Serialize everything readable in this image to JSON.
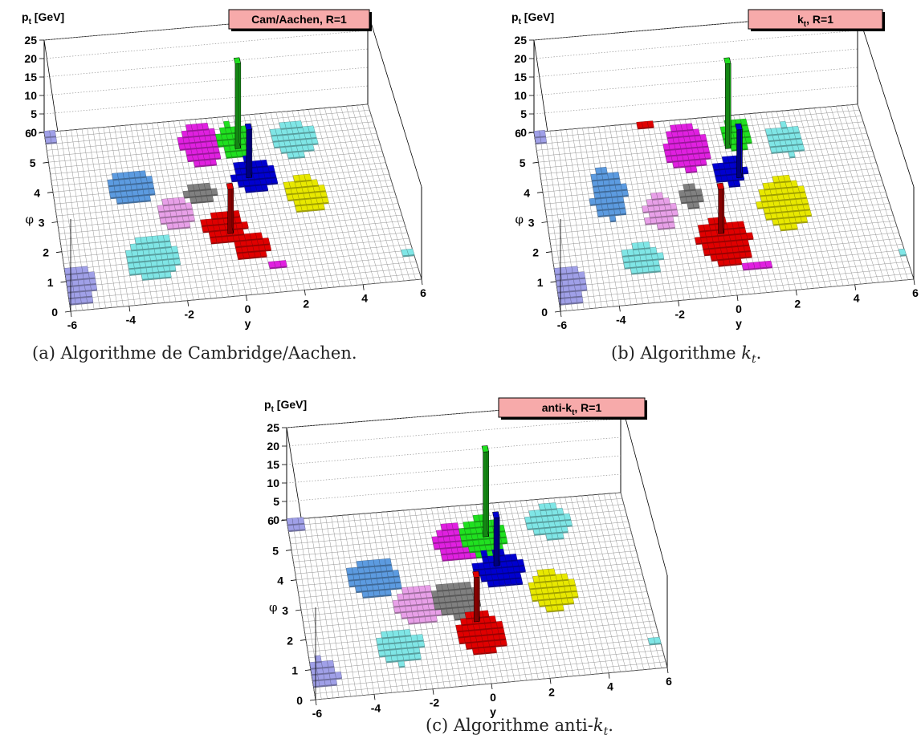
{
  "chart_data": [
    {
      "type": "lego3d",
      "id": "a",
      "title": "Cam/Aachen, R=1",
      "zlabel_main": "p",
      "zlabel_sub": "t",
      "zlabel_unit": " [GeV]",
      "xlabel": "y",
      "ylabel": "φ",
      "xlim": [
        -6,
        6
      ],
      "ylim": [
        0,
        6
      ],
      "zlim": [
        0,
        25
      ],
      "x_ticks": [
        "-6",
        "-4",
        "-2",
        "0",
        "2",
        "4",
        "6"
      ],
      "y_ticks": [
        "0",
        "1",
        "2",
        "3",
        "4",
        "5",
        "6"
      ],
      "z_ticks": [
        "0",
        "5",
        "10",
        "15",
        "20",
        "25"
      ],
      "grid": true,
      "caption_prefix": "(a) Algorithme de Cambridge/Aachen.",
      "caption_math": "",
      "caption_sub": "",
      "caption_suffix": "",
      "jets": [
        {
          "color": "#a0a0e8",
          "blobs": [
            [
              -5.6,
              0.8,
              0.55,
              0.65
            ],
            [
              -6.0,
              5.85,
              0.5,
              0.2
            ]
          ]
        },
        {
          "color": "#7fe6e6",
          "blobs": [
            [
              -2.9,
              1.5,
              0.95,
              0.75
            ],
            [
              3.0,
              5.0,
              0.8,
              0.55
            ],
            [
              5.9,
              0.9,
              0.25,
              0.12
            ]
          ]
        },
        {
          "color": "#5c9be0",
          "blobs": [
            [
              -3.2,
              3.9,
              0.85,
              0.55
            ]
          ]
        },
        {
          "color": "#e8a0e8",
          "blobs": [
            [
              -1.8,
              2.95,
              0.6,
              0.55
            ]
          ]
        },
        {
          "color": "#808080",
          "blobs": [
            [
              -0.8,
              3.5,
              0.55,
              0.35
            ]
          ]
        },
        {
          "color": "#e00000",
          "blobs": [
            [
              -0.2,
              2.3,
              0.8,
              0.55
            ],
            [
              0.6,
              1.6,
              0.6,
              0.5
            ]
          ]
        },
        {
          "color": "#e020e0",
          "blobs": [
            [
              -0.4,
              5.1,
              0.75,
              0.7
            ],
            [
              1.3,
              0.95,
              0.35,
              0.12
            ]
          ]
        },
        {
          "color": "#20e020",
          "blobs": [
            [
              0.8,
              5.15,
              0.6,
              0.55
            ]
          ]
        },
        {
          "color": "#0000d0",
          "blobs": [
            [
              1.25,
              3.95,
              0.8,
              0.55
            ]
          ]
        },
        {
          "color": "#e8e800",
          "blobs": [
            [
              2.9,
              3.15,
              0.7,
              0.6
            ]
          ]
        }
      ],
      "spikes": [
        {
          "x": 0.8,
          "y": 4.9,
          "z": 23,
          "color": "#20e020"
        },
        {
          "x": 0.95,
          "y": 3.9,
          "z": 13,
          "color": "#0000d0"
        },
        {
          "x": -0.15,
          "y": 2.1,
          "z": 12,
          "color": "#e00000"
        }
      ]
    },
    {
      "type": "lego3d",
      "id": "b",
      "title_main": "k",
      "title_sub": "t",
      "title_rest": ", R=1",
      "zlabel_main": "p",
      "zlabel_sub": "t",
      "zlabel_unit": " [GeV]",
      "xlabel": "y",
      "ylabel": "φ",
      "xlim": [
        -6,
        6
      ],
      "ylim": [
        0,
        6
      ],
      "zlim": [
        0,
        25
      ],
      "x_ticks": [
        "-6",
        "-4",
        "-2",
        "0",
        "2",
        "4",
        "6"
      ],
      "y_ticks": [
        "0",
        "1",
        "2",
        "3",
        "4",
        "5",
        "6"
      ],
      "z_ticks": [
        "0",
        "5",
        "10",
        "15",
        "20",
        "25"
      ],
      "grid": true,
      "caption_prefix": "(b) Algorithme ",
      "caption_math": "k",
      "caption_sub": "t",
      "caption_suffix": ".",
      "jets": [
        {
          "color": "#a0a0e8",
          "blobs": [
            [
              -5.6,
              0.8,
              0.55,
              0.6
            ],
            [
              -6.0,
              5.85,
              0.5,
              0.2
            ]
          ]
        },
        {
          "color": "#7fe6e6",
          "blobs": [
            [
              -2.9,
              1.45,
              0.65,
              0.5
            ],
            [
              3.0,
              5.0,
              0.7,
              0.5
            ],
            [
              5.9,
              0.85,
              0.2,
              0.1
            ]
          ]
        },
        {
          "color": "#5c9be0",
          "blobs": [
            [
              -3.7,
              3.7,
              0.6,
              0.85
            ]
          ]
        },
        {
          "color": "#e8a0e8",
          "blobs": [
            [
              -2.0,
              2.95,
              0.55,
              0.6
            ]
          ]
        },
        {
          "color": "#808080",
          "blobs": [
            [
              -0.8,
              3.4,
              0.45,
              0.35
            ]
          ]
        },
        {
          "color": "#e00000",
          "blobs": [
            [
              0.0,
              1.8,
              0.9,
              0.75
            ],
            [
              -1.9,
              5.9,
              0.3,
              0.12
            ]
          ]
        },
        {
          "color": "#e020e0",
          "blobs": [
            [
              -0.6,
              5.05,
              0.8,
              0.75
            ],
            [
              0.9,
              0.95,
              0.45,
              0.15
            ]
          ]
        },
        {
          "color": "#20e020",
          "blobs": [
            [
              1.3,
              5.35,
              0.55,
              0.5
            ]
          ]
        },
        {
          "color": "#0000d0",
          "blobs": [
            [
              0.8,
              4.1,
              0.55,
              0.45
            ]
          ]
        },
        {
          "color": "#e8e800",
          "blobs": [
            [
              2.4,
              2.9,
              0.9,
              0.85
            ]
          ]
        }
      ],
      "spikes": [
        {
          "x": 0.8,
          "y": 4.9,
          "z": 23,
          "color": "#20e020"
        },
        {
          "x": 0.95,
          "y": 3.9,
          "z": 13,
          "color": "#0000d0"
        },
        {
          "x": -0.15,
          "y": 2.1,
          "z": 12,
          "color": "#e00000"
        }
      ]
    },
    {
      "type": "lego3d",
      "id": "c",
      "title_main": "anti-k",
      "title_sub": "t",
      "title_rest": ", R=1",
      "zlabel_main": "p",
      "zlabel_sub": "t",
      "zlabel_unit": " [GeV]",
      "xlabel": "y",
      "ylabel": "φ",
      "xlim": [
        -6,
        6
      ],
      "ylim": [
        0,
        6
      ],
      "zlim": [
        0,
        25
      ],
      "x_ticks": [
        "-6",
        "-4",
        "-2",
        "0",
        "2",
        "4",
        "6"
      ],
      "y_ticks": [
        "0",
        "1",
        "2",
        "3",
        "4",
        "5",
        "6"
      ],
      "z_ticks": [
        "0",
        "5",
        "10",
        "15",
        "20",
        "25"
      ],
      "grid": true,
      "caption_prefix": "(c) Algorithme anti-",
      "caption_math": "k",
      "caption_sub": "t",
      "caption_suffix": ".",
      "jets": [
        {
          "color": "#a0a0e8",
          "blobs": [
            [
              -5.6,
              0.85,
              0.5,
              0.5
            ],
            [
              -5.8,
              5.8,
              0.5,
              0.25
            ]
          ]
        },
        {
          "color": "#7fe6e6",
          "blobs": [
            [
              -2.9,
              1.5,
              0.8,
              0.6
            ],
            [
              3.2,
              5.2,
              0.75,
              0.55
            ],
            [
              5.8,
              0.9,
              0.25,
              0.1
            ]
          ]
        },
        {
          "color": "#5c9be0",
          "blobs": [
            [
              -3.3,
              3.8,
              0.9,
              0.65
            ]
          ]
        },
        {
          "color": "#e8a0e8",
          "blobs": [
            [
              -1.9,
              2.8,
              0.85,
              0.65
            ]
          ]
        },
        {
          "color": "#808080",
          "blobs": [
            [
              -0.6,
              2.9,
              0.8,
              0.6
            ]
          ]
        },
        {
          "color": "#e00000",
          "blobs": [
            [
              0.0,
              1.7,
              0.85,
              0.65
            ]
          ]
        },
        {
          "color": "#e020e0",
          "blobs": [
            [
              -0.2,
              4.75,
              0.75,
              0.6
            ]
          ]
        },
        {
          "color": "#20e020",
          "blobs": [
            [
              0.8,
              4.9,
              0.85,
              0.65
            ]
          ]
        },
        {
          "color": "#0000d0",
          "blobs": [
            [
              1.1,
              3.75,
              0.85,
              0.6
            ]
          ]
        },
        {
          "color": "#e8e800",
          "blobs": [
            [
              2.8,
              2.9,
              0.85,
              0.65
            ]
          ]
        }
      ],
      "spikes": [
        {
          "x": 0.8,
          "y": 4.9,
          "z": 23,
          "color": "#20e020"
        },
        {
          "x": 0.95,
          "y": 3.9,
          "z": 13,
          "color": "#0000d0"
        },
        {
          "x": -0.15,
          "y": 2.1,
          "z": 12,
          "color": "#e00000"
        }
      ]
    }
  ]
}
